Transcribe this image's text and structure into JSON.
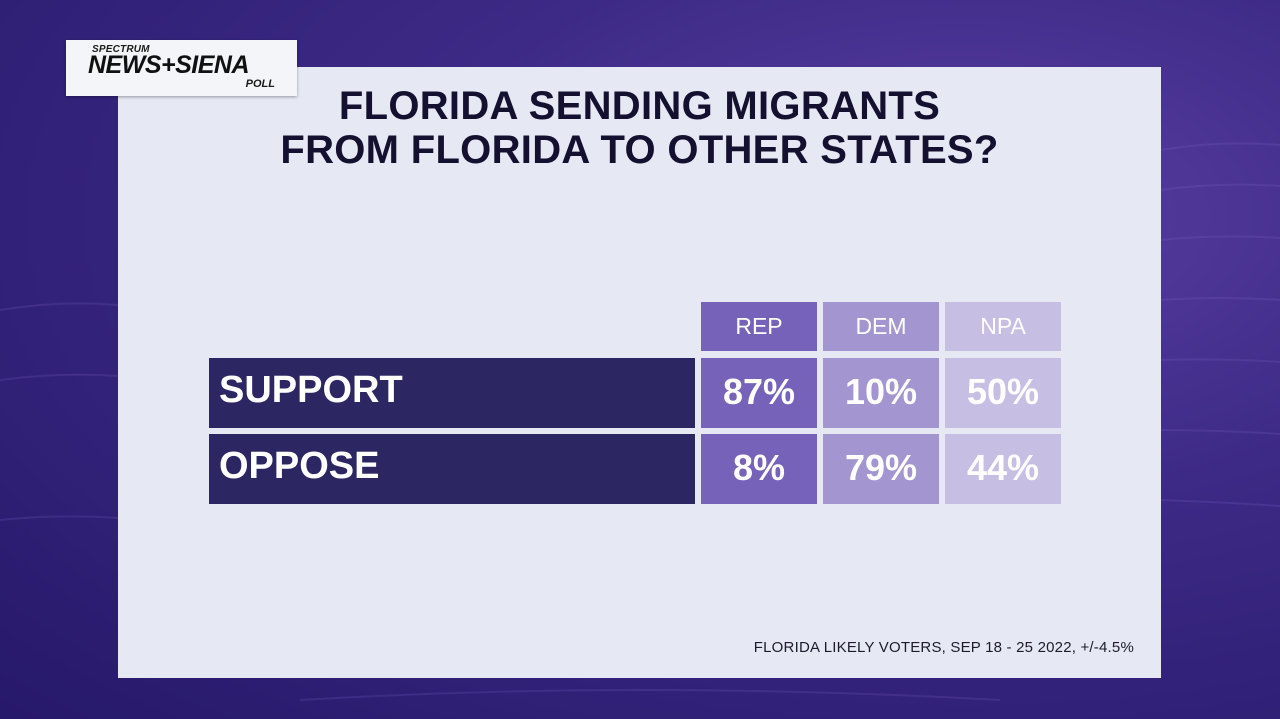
{
  "logo": {
    "top": "SPECTRUM",
    "main": "NEWS+SIENA",
    "bottom": "POLL"
  },
  "colors": {
    "rep": "#7662b8",
    "dem": "#a295d0",
    "npa": "#c6bee3",
    "row_label": "#2c2762",
    "panel": "#e6e8f4"
  },
  "chart_data": {
    "type": "table",
    "title_lines": [
      "FLORIDA SENDING MIGRANTS",
      "FROM FLORIDA TO OTHER STATES?"
    ],
    "columns": [
      "REP",
      "DEM",
      "NPA"
    ],
    "rows": [
      {
        "label": "SUPPORT",
        "values": [
          "87%",
          "10%",
          "50%"
        ]
      },
      {
        "label": "OPPOSE",
        "values": [
          "8%",
          "79%",
          "44%"
        ]
      }
    ],
    "source": "FLORIDA LIKELY VOTERS, SEP 18 - 25 2022, +/-4.5%"
  }
}
